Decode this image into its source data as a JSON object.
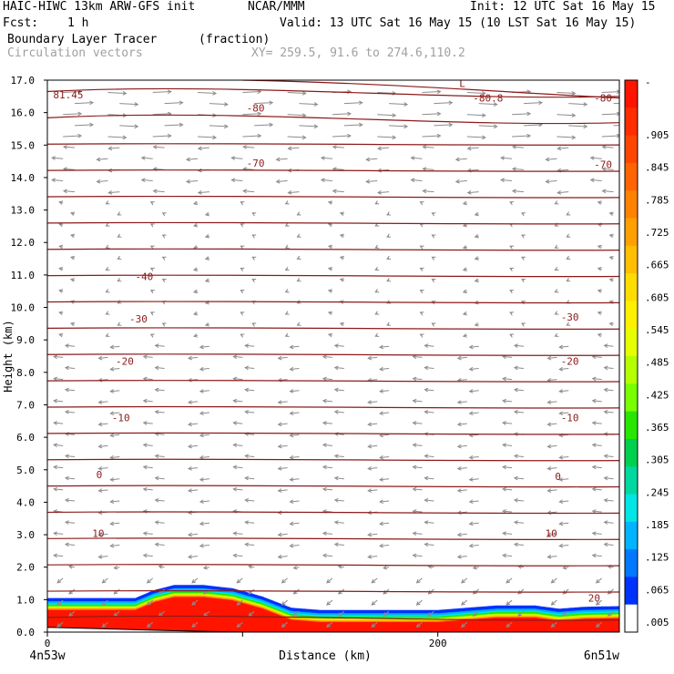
{
  "header": {
    "model": "HAIC-HIWC 13km ARW-GFS init",
    "org": "NCAR/MMM",
    "init": "Init: 12 UTC Sat 16 May 15",
    "fcst_label": "Fcst:",
    "fcst_value": "1 h",
    "valid": "Valid: 13 UTC Sat 16 May 15 (10 LST Sat 16 May 15)",
    "field": "Boundary Layer Tracer",
    "units": "(fraction)",
    "overlay": "Circulation vectors",
    "xy": "XY= 259.5, 91.6 to 274.6,110.2"
  },
  "chart_data": {
    "type": "heatmap",
    "title": "Boundary Layer Tracer",
    "xlabel": "Distance (km)",
    "ylabel": "Height (km)",
    "xlim": [
      0,
      293
    ],
    "ylim": [
      0,
      17
    ],
    "x_ticks": [
      0,
      100,
      200
    ],
    "x_tick_labels": [
      "0",
      "",
      "200"
    ],
    "y_ticks": [
      0,
      1,
      2,
      3,
      4,
      5,
      6,
      7,
      8,
      9,
      10,
      11,
      12,
      13,
      14,
      15,
      16,
      17
    ],
    "y_tick_labels": [
      "0.0",
      "1.0",
      "2.0",
      "3.0",
      "4.0",
      "5.0",
      "6.0",
      "7.0",
      "8.0",
      "9.0",
      "10.0",
      "11.0",
      "12.0",
      "13.0",
      "14.0",
      "15.0",
      "16.0",
      "17.0"
    ],
    "left_endpoint": "4n53w",
    "right_endpoint": "6n51w",
    "colorbar_labels": [
      ".905",
      ".845",
      ".785",
      ".725",
      ".665",
      ".605",
      ".545",
      ".485",
      ".425",
      ".365",
      ".305",
      ".245",
      ".185",
      ".125",
      ".065",
      ".005"
    ],
    "colorbar_colors": [
      "#ff1400",
      "#ff2d00",
      "#ff4600",
      "#ff6400",
      "#ff8200",
      "#ffa000",
      "#ffbe00",
      "#ffdc00",
      "#fff000",
      "#e6ff00",
      "#b4ff00",
      "#78ff00",
      "#28e600",
      "#00d050",
      "#00d8a0",
      "#00e6e6",
      "#00b4ff",
      "#0078ff",
      "#0032ff",
      "#ffffff"
    ],
    "colorbar_top_label": "-",
    "boundary_layer_top_km": [
      [
        0,
        1.05
      ],
      [
        45,
        1.05
      ],
      [
        55,
        1.3
      ],
      [
        65,
        1.45
      ],
      [
        80,
        1.45
      ],
      [
        95,
        1.35
      ],
      [
        110,
        1.1
      ],
      [
        125,
        0.75
      ],
      [
        140,
        0.68
      ],
      [
        200,
        0.68
      ],
      [
        230,
        0.82
      ],
      [
        250,
        0.82
      ],
      [
        262,
        0.72
      ],
      [
        275,
        0.78
      ],
      [
        293,
        0.8
      ]
    ],
    "terrain_top_km": [
      [
        0,
        0.15
      ],
      [
        60,
        0.05
      ],
      [
        100,
        0.0
      ],
      [
        293,
        0.0
      ]
    ],
    "temperature_contours": [
      {
        "label": "-80.8",
        "y": 16.8
      },
      {
        "label": "-81.45",
        "y": 16.6
      },
      {
        "label": "-80",
        "y": 16.3
      },
      {
        "label": "-70",
        "y": 14.5
      },
      {
        "label": "-40",
        "y": 11.0
      },
      {
        "label": "-30",
        "y": 9.7
      },
      {
        "label": "-20",
        "y": 8.4
      },
      {
        "label": "-10",
        "y": 6.6
      },
      {
        "label": "0",
        "y": 4.85
      },
      {
        "label": "10",
        "y": 3.0
      },
      {
        "label": "20",
        "y": 1.0
      }
    ],
    "contour_labels": [
      {
        "text": "81.45",
        "x": 3,
        "y": 16.55
      },
      {
        "text": "-80.8",
        "x": 218,
        "y": 16.45
      },
      {
        "text": "-80",
        "x": 102,
        "y": 16.15
      },
      {
        "text": "-80",
        "x": 280,
        "y": 16.45
      },
      {
        "text": "-70",
        "x": 102,
        "y": 14.45
      },
      {
        "text": "-70",
        "x": 280,
        "y": 14.4
      },
      {
        "text": "-40",
        "x": 45,
        "y": 10.95
      },
      {
        "text": "-30",
        "x": 42,
        "y": 9.65
      },
      {
        "text": "-30",
        "x": 263,
        "y": 9.7
      },
      {
        "text": "-20",
        "x": 35,
        "y": 8.35
      },
      {
        "text": "-20",
        "x": 263,
        "y": 8.35
      },
      {
        "text": "-10",
        "x": 33,
        "y": 6.6
      },
      {
        "text": "-10",
        "x": 263,
        "y": 6.6
      },
      {
        "text": "0",
        "x": 25,
        "y": 4.85
      },
      {
        "text": "0",
        "x": 260,
        "y": 4.8
      },
      {
        "text": "10",
        "x": 23,
        "y": 3.05
      },
      {
        "text": "10",
        "x": 255,
        "y": 3.05
      },
      {
        "text": "20",
        "x": 277,
        "y": 1.05
      },
      {
        "text": "L",
        "x": 211,
        "y": 16.9
      }
    ]
  }
}
